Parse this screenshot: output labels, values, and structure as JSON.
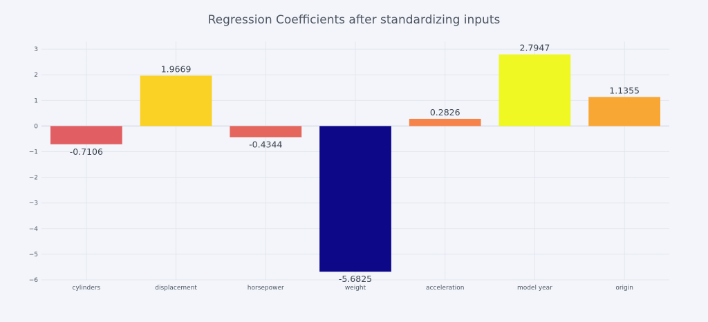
{
  "chart_data": {
    "type": "bar",
    "title": "Regression Coefficients after standardizing inputs",
    "xlabel": "",
    "ylabel": "",
    "categories": [
      "cylinders",
      "displacement",
      "horsepower",
      "weight",
      "acceleration",
      "model year",
      "origin"
    ],
    "values": [
      -0.7106,
      1.9669,
      -0.4344,
      -5.6825,
      0.2826,
      2.7947,
      1.1355
    ],
    "value_labels": [
      "-0.7106",
      "1.9669",
      "-0.4344",
      "-5.6825",
      "0.2826",
      "2.7947",
      "1.1355"
    ],
    "colors": [
      "#e15f63",
      "#fad125",
      "#e4665c",
      "#0d0887",
      "#f6844a",
      "#eff822",
      "#f9a734"
    ],
    "ylim": [
      -6,
      3.3
    ],
    "yticks": [
      3,
      2,
      1,
      0,
      -1,
      -2,
      -3,
      -4,
      -5,
      -6
    ],
    "ytick_labels": [
      "3",
      "2",
      "1",
      "0",
      "−1",
      "−2",
      "−3",
      "−4",
      "−5",
      "−6"
    ],
    "grid": true,
    "legend": "none"
  }
}
